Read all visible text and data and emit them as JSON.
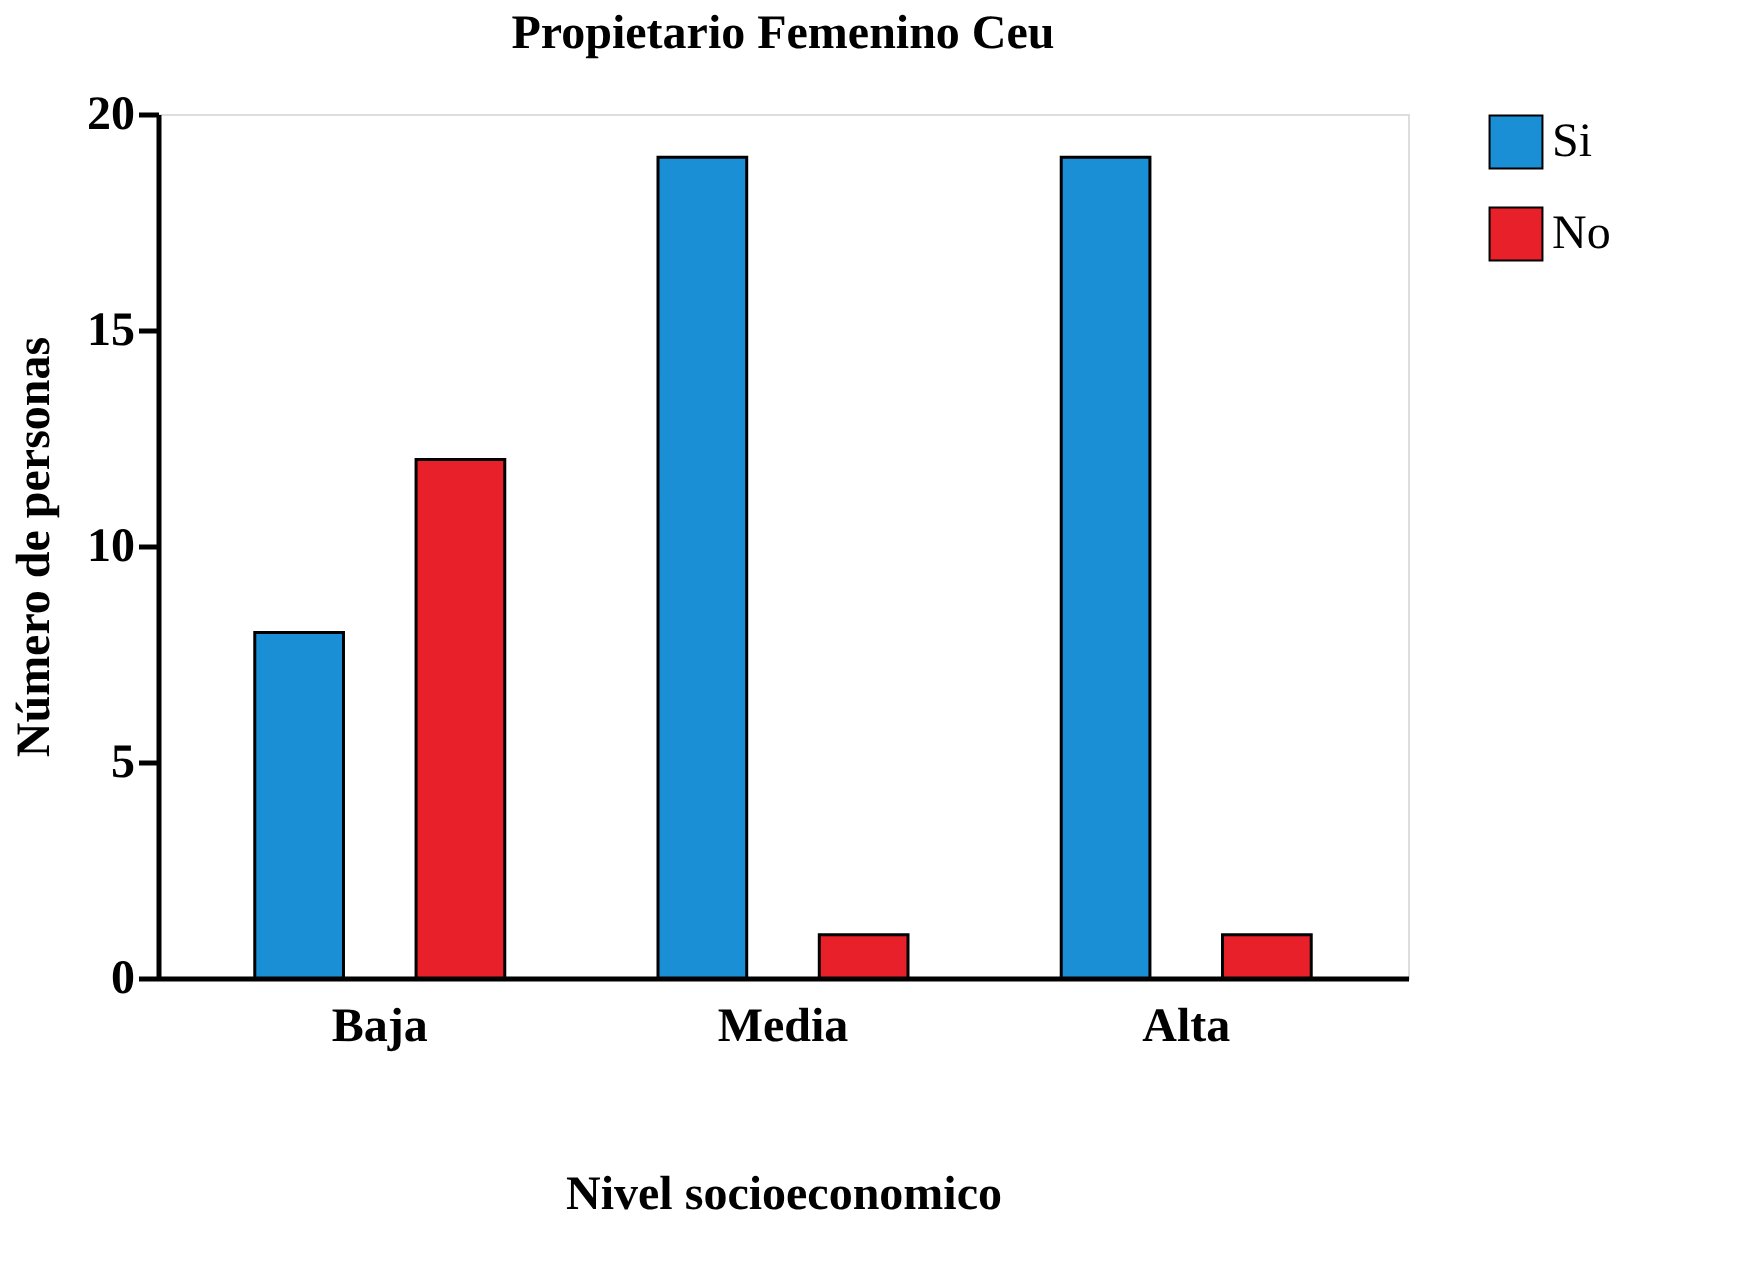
{
  "chart_data": {
    "type": "bar",
    "title": "Propietario Femenino Ceu",
    "xlabel": "Nivel socioeconomico",
    "ylabel": "Número de personas",
    "categories": [
      "Baja",
      "Media",
      "Alta"
    ],
    "series": [
      {
        "name": "Si",
        "color": "#1a8fd6",
        "values": [
          8,
          19,
          19
        ]
      },
      {
        "name": "No",
        "color": "#e8202a",
        "values": [
          12,
          1,
          1
        ]
      }
    ],
    "ylim": [
      0,
      20
    ],
    "yticks": [
      0,
      5,
      10,
      15,
      20
    ],
    "grid": false,
    "legend": "top right"
  }
}
